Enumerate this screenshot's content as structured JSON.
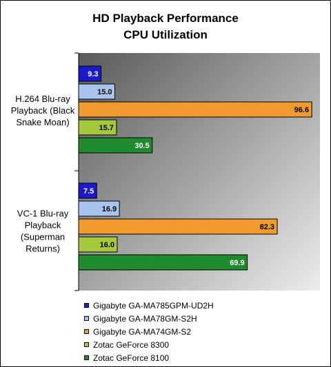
{
  "chart_data": {
    "type": "bar",
    "orientation": "horizontal",
    "title_line1": "HD Playback Performance",
    "title_line2": "CPU Utilization",
    "categories": [
      [
        "H.264 Blu-ray",
        "Playback (Black",
        "Snake Moan)"
      ],
      [
        "VC-1 Blu-ray",
        "Playback",
        "(Superman",
        "Returns)"
      ]
    ],
    "series": [
      {
        "name": "Gigabyte GA-MA785GPM-UD2H",
        "color": "#1a1acc",
        "label_color": "#ffffff",
        "values": [
          9.3,
          7.5
        ]
      },
      {
        "name": "Gigabyte GA-MA78GM-S2H",
        "color": "#a9c4ec",
        "label_color": "#000000",
        "values": [
          15.0,
          16.9
        ]
      },
      {
        "name": "Gigabyte GA-MA74GM-S2",
        "color": "#f19a2e",
        "label_color": "#000000",
        "values": [
          96.6,
          82.3
        ]
      },
      {
        "name": "Zotac GeForce 8300",
        "color": "#a6c83c",
        "label_color": "#000000",
        "values": [
          15.7,
          16.0
        ]
      },
      {
        "name": "Zotac GeForce 8100",
        "color": "#1f8a2e",
        "label_color": "#ffffff",
        "values": [
          30.5,
          69.9
        ]
      }
    ],
    "value_labels": [
      [
        "9.3",
        "15.0",
        "96.6",
        "15.7",
        "30.5"
      ],
      [
        "7.5",
        "16.9",
        "82.3",
        "16.0",
        "69.9"
      ]
    ],
    "xlim": [
      0,
      100
    ],
    "grid": false,
    "legend_position": "bottom"
  }
}
